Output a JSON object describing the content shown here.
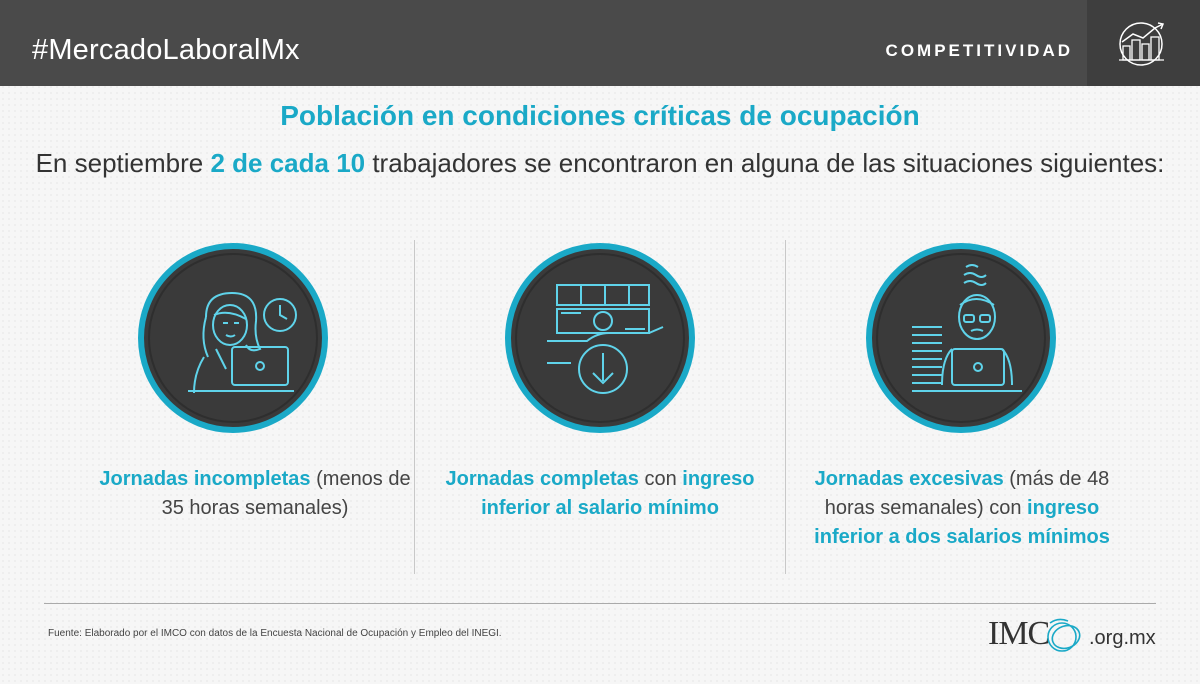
{
  "header": {
    "hashtag": "#MercadoLaboralMx",
    "section": "COMPETITIVIDAD",
    "icon": "city-growth-icon"
  },
  "title": "Población en condiciones críticas de ocupación",
  "subtitle": {
    "before": "En septiembre ",
    "highlight": "2 de cada 10",
    "after": " trabajadores se encontraron en alguna de las situaciones siguientes:"
  },
  "items": [
    {
      "icon": "tired-worker-clock-icon",
      "hl1": "Jornadas incompletas",
      "text1": " (menos de 35 horas semanales)"
    },
    {
      "icon": "money-down-icon",
      "hl1": "Jornadas completas",
      "text1": " con ",
      "hl2": "ingreso inferior al salario mínimo"
    },
    {
      "icon": "overworked-worker-icon",
      "hl1": "Jornadas excesivas",
      "text1": " (más de 48 horas semanales) con ",
      "hl2": "ingreso inferior a dos salarios mínimos"
    }
  ],
  "footer": {
    "source": "Fuente: Elaborado por el IMCO con datos de la Encuesta Nacional de Ocupación y Empleo del INEGI.",
    "logo_imc": "IMC",
    "logo_org": ".org.mx"
  },
  "colors": {
    "accent": "#1aa9c7",
    "header_bg": "#4a4a4a",
    "circle_bg": "#3a3a3a"
  }
}
